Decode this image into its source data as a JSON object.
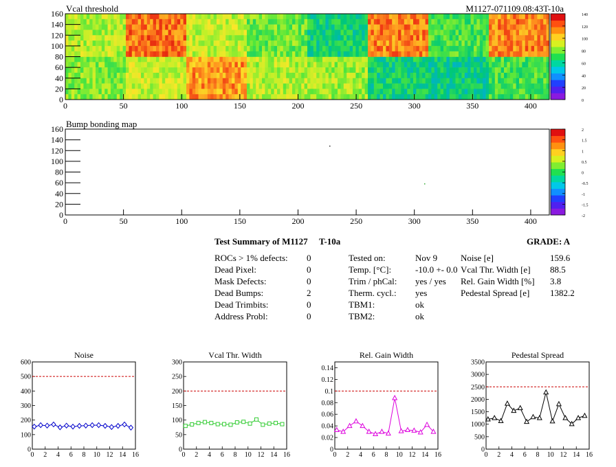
{
  "maps": {
    "vcal": {
      "title": "Vcal threshold",
      "module_id": "M1127-071109.08:43T-10a",
      "x_ticks": [
        "0",
        "50",
        "100",
        "150",
        "200",
        "250",
        "300",
        "350",
        "400"
      ],
      "y_ticks": [
        "0",
        "20",
        "40",
        "60",
        "80",
        "100",
        "120",
        "140",
        "160"
      ],
      "colorbar_ticks": [
        "0",
        "20",
        "40",
        "60",
        "80",
        "100",
        "120",
        "140"
      ]
    },
    "bump": {
      "title": "Bump bonding map",
      "x_ticks": [
        "0",
        "50",
        "100",
        "150",
        "200",
        "250",
        "300",
        "350",
        "400"
      ],
      "y_ticks": [
        "0",
        "20",
        "40",
        "60",
        "80",
        "100",
        "120",
        "140",
        "160"
      ],
      "colorbar_ticks": [
        "-2",
        "-1.5",
        "-1",
        "-0.5",
        "0",
        "0.5",
        "1",
        "1.5",
        "2"
      ]
    }
  },
  "summary": {
    "title": "Test Summary of M1127",
    "temp_tag": "T-10a",
    "grade": "GRADE:  A",
    "defects": [
      {
        "label": "ROCs > 1% defects:",
        "value": "0"
      },
      {
        "label": "Dead Pixel:",
        "value": "0"
      },
      {
        "label": "Mask Defects:",
        "value": "0"
      },
      {
        "label": "Dead Bumps:",
        "value": "2"
      },
      {
        "label": "Dead Trimbits:",
        "value": "0"
      },
      {
        "label": "Address Probl:",
        "value": "0"
      }
    ],
    "conditions": [
      {
        "label": "Tested on:",
        "value": "Nov 9"
      },
      {
        "label": "Temp. [°C]:",
        "value": "-10.0 +- 0.0"
      },
      {
        "label": "Trim / phCal:",
        "value": "yes / yes"
      },
      {
        "label": "Therm. cycl.:",
        "value": "yes"
      },
      {
        "label": "TBM1:",
        "value": "ok"
      },
      {
        "label": "TBM2:",
        "value": "ok"
      }
    ],
    "results": [
      {
        "label": "Noise [e]",
        "value": "159.6"
      },
      {
        "label": "Vcal Thr. Width [e]",
        "value": "88.5"
      },
      {
        "label": "Rel. Gain Width [%]",
        "value": "3.8"
      },
      {
        "label": "Pedestal Spread [e]",
        "value": "1382.2"
      }
    ]
  },
  "chart_data": [
    {
      "type": "line",
      "title": "Noise",
      "x": [
        0,
        1,
        2,
        3,
        4,
        5,
        6,
        7,
        8,
        9,
        10,
        11,
        12,
        13,
        14,
        15
      ],
      "y": [
        155,
        165,
        162,
        170,
        150,
        162,
        155,
        160,
        162,
        165,
        165,
        160,
        152,
        160,
        170,
        148
      ],
      "xlim": [
        0,
        16
      ],
      "ylim": [
        0,
        600
      ],
      "x_ticks": [
        "0",
        "2",
        "4",
        "6",
        "8",
        "10",
        "12",
        "14",
        "16"
      ],
      "y_ticks": [
        "0",
        "100",
        "200",
        "300",
        "400",
        "500",
        "600"
      ],
      "limit": 500,
      "color": "#0000cc",
      "marker": "diamond"
    },
    {
      "type": "line",
      "title": "Vcal Thr. Width",
      "x": [
        0,
        1,
        2,
        3,
        4,
        5,
        6,
        7,
        8,
        9,
        10,
        11,
        12,
        13,
        14,
        15
      ],
      "y": [
        80,
        85,
        90,
        93,
        90,
        86,
        86,
        84,
        92,
        94,
        88,
        102,
        84,
        88,
        90,
        86
      ],
      "xlim": [
        0,
        16
      ],
      "ylim": [
        0,
        300
      ],
      "x_ticks": [
        "0",
        "2",
        "4",
        "6",
        "8",
        "10",
        "12",
        "14",
        "16"
      ],
      "y_ticks": [
        "0",
        "50",
        "100",
        "150",
        "200",
        "250",
        "300"
      ],
      "limit": 200,
      "color": "#33cc33",
      "marker": "square"
    },
    {
      "type": "line",
      "title": "Rel. Gain Width",
      "x": [
        0,
        1,
        2,
        3,
        4,
        5,
        6,
        7,
        8,
        9,
        10,
        11,
        12,
        13,
        14,
        15
      ],
      "y": [
        0.033,
        0.03,
        0.04,
        0.048,
        0.04,
        0.03,
        0.026,
        0.03,
        0.027,
        0.088,
        0.031,
        0.033,
        0.032,
        0.029,
        0.042,
        0.03
      ],
      "xlim": [
        0,
        16
      ],
      "ylim": [
        0,
        0.15
      ],
      "x_ticks": [
        "0",
        "2",
        "4",
        "6",
        "8",
        "10",
        "12",
        "14",
        "16"
      ],
      "y_ticks": [
        "0",
        "0.02",
        "0.04",
        "0.06",
        "0.08",
        "0.1",
        "0.12",
        "0.14"
      ],
      "y_tick_values": [
        0,
        0.02,
        0.04,
        0.06,
        0.08,
        0.1,
        0.12,
        0.14
      ],
      "limit": 0.1,
      "color": "#dd00dd",
      "marker": "triangle"
    },
    {
      "type": "line",
      "title": "Pedestal Spread",
      "x": [
        0,
        1,
        2,
        3,
        4,
        5,
        6,
        7,
        8,
        9,
        10,
        11,
        12,
        13,
        14,
        15
      ],
      "y": [
        1200,
        1250,
        1130,
        1830,
        1540,
        1650,
        1100,
        1290,
        1250,
        2280,
        1120,
        1810,
        1250,
        1010,
        1250,
        1340
      ],
      "xlim": [
        0,
        16
      ],
      "ylim": [
        0,
        3500
      ],
      "x_ticks": [
        "0",
        "2",
        "4",
        "6",
        "8",
        "10",
        "12",
        "14",
        "16"
      ],
      "y_ticks": [
        "0",
        "500",
        "1000",
        "1500",
        "2000",
        "2500",
        "3000",
        "3500"
      ],
      "limit": 2500,
      "color": "#000000",
      "marker": "triangle"
    }
  ]
}
